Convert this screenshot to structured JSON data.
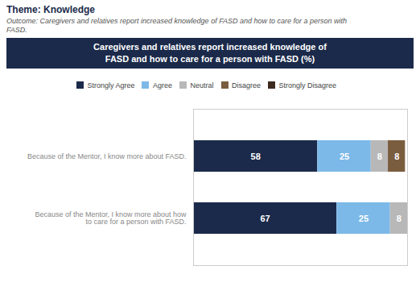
{
  "chart_data": {
    "type": "bar",
    "orientation": "horizontal",
    "stacked": true,
    "title": "Caregivers and relatives report increased knowledge of\nFASD and how to care for a person with FASD (%)",
    "subtitle": "Theme: Knowledge",
    "annotations": [
      "Outcome: Caregivers and relatives report increased knowledge of FASD and how to care for a person with",
      "FASD."
    ],
    "categories": [
      "Because of the Mentor, I know more about how\nto care for a person with FASD.",
      "Because of the Mentor, I know more about FASD."
    ],
    "series": [
      {
        "name": "Strongly Agree",
        "color": "#1b2a4a",
        "values": [
          67,
          58
        ]
      },
      {
        "name": "Agree",
        "color": "#7cb9e8",
        "values": [
          25,
          25
        ]
      },
      {
        "name": "Neutral",
        "color": "#b8b8b8",
        "values": [
          8,
          8
        ]
      },
      {
        "name": "Disagree",
        "color": "#7a5c3e",
        "values": [
          0,
          8
        ]
      },
      {
        "name": "Strongly Disagree",
        "color": "#3d2b1f",
        "values": [
          0,
          0
        ]
      }
    ],
    "xlim": [
      0,
      100
    ],
    "data_labels": true,
    "tick_labels": "y",
    "legend": "top",
    "grid": false
  }
}
